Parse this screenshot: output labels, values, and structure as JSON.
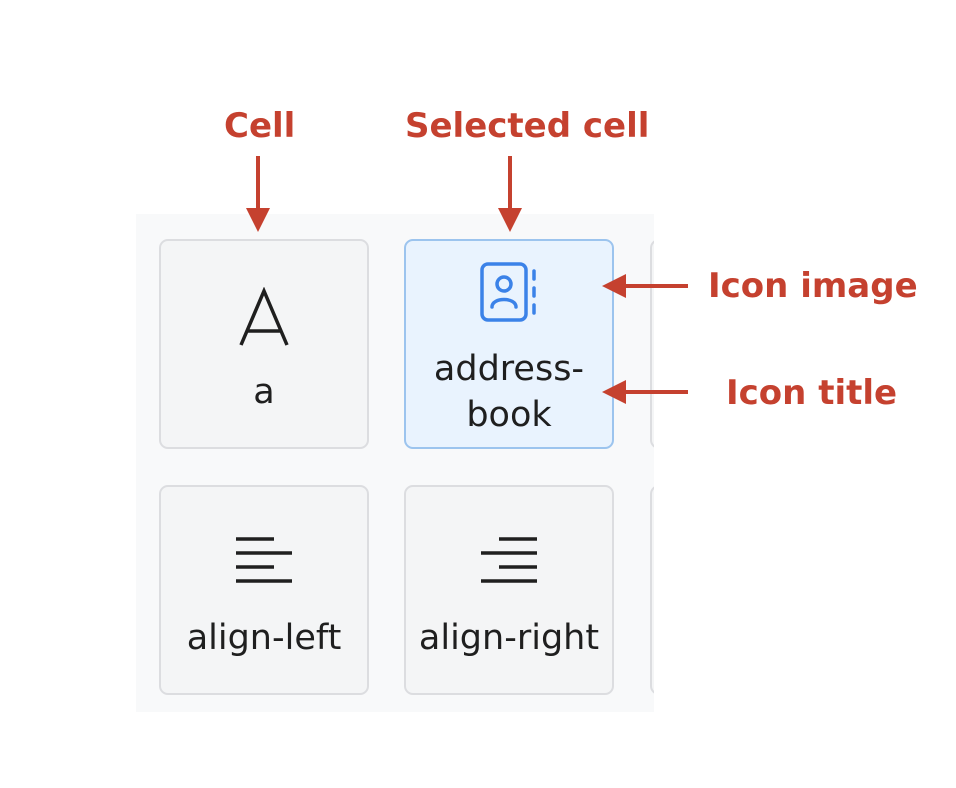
{
  "callouts": {
    "cell": "Cell",
    "selected_cell": "Selected cell",
    "icon_image": "Icon image",
    "icon_title": "Icon title"
  },
  "cells": [
    {
      "title": "a",
      "icon": "letter-a-icon",
      "selected": false
    },
    {
      "title": "address-\nbook",
      "icon": "address-book-icon",
      "selected": true
    },
    {
      "title": "align-left",
      "icon": "align-left-icon",
      "selected": false
    },
    {
      "title": "align-right",
      "icon": "align-right-icon",
      "selected": false
    }
  ],
  "colors": {
    "callout": "#c5412f",
    "selected_border": "#9cc4ee",
    "selected_fill": "#e9f3fe",
    "icon_blue": "#3b82e8"
  }
}
